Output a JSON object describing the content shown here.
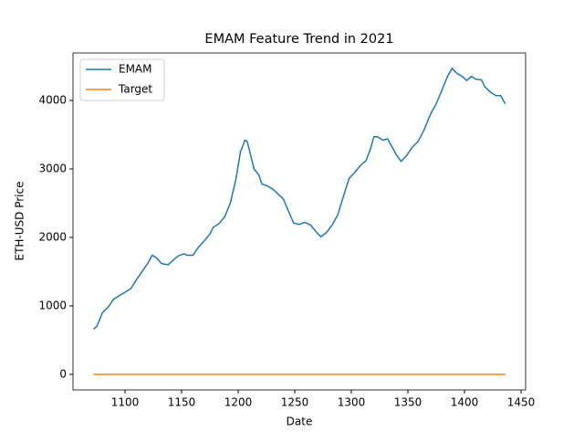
{
  "chart_data": {
    "type": "line",
    "title": "EMAM Feature Trend in 2021",
    "xlabel": "Date",
    "ylabel": "ETH-USD Price",
    "xlim": [
      1054,
      1454
    ],
    "ylim": [
      -227,
      4693
    ],
    "xticks": [
      1100,
      1150,
      1200,
      1250,
      1300,
      1350,
      1400,
      1450
    ],
    "yticks": [
      0,
      1000,
      2000,
      3000,
      4000
    ],
    "legend": "upper-left",
    "series": [
      {
        "name": "EMAM",
        "color": "#1f77b4",
        "x": [
          1072,
          1075,
          1080,
          1085,
          1090,
          1095,
          1100,
          1105,
          1110,
          1115,
          1120,
          1124,
          1128,
          1132,
          1138,
          1142,
          1147,
          1152,
          1155,
          1160,
          1165,
          1170,
          1175,
          1178,
          1183,
          1188,
          1193,
          1198,
          1202,
          1206,
          1208,
          1211,
          1214,
          1218,
          1221,
          1226,
          1231,
          1236,
          1240,
          1244,
          1249,
          1254,
          1259,
          1264,
          1269,
          1273,
          1278,
          1283,
          1288,
          1293,
          1298,
          1303,
          1308,
          1313,
          1317,
          1320,
          1323,
          1328,
          1332,
          1336,
          1340,
          1344,
          1349,
          1354,
          1359,
          1364,
          1370,
          1375,
          1380,
          1385,
          1389,
          1393,
          1398,
          1402,
          1406,
          1410,
          1415,
          1418,
          1423,
          1428,
          1432,
          1436
        ],
        "values": [
          660,
          700,
          900,
          980,
          1100,
          1150,
          1200,
          1250,
          1380,
          1500,
          1620,
          1740,
          1700,
          1620,
          1600,
          1660,
          1730,
          1760,
          1740,
          1740,
          1860,
          1950,
          2050,
          2150,
          2200,
          2300,
          2500,
          2850,
          3250,
          3420,
          3400,
          3200,
          3000,
          2920,
          2780,
          2750,
          2700,
          2620,
          2560,
          2400,
          2210,
          2190,
          2220,
          2180,
          2080,
          2010,
          2070,
          2180,
          2330,
          2600,
          2860,
          2950,
          3050,
          3120,
          3300,
          3470,
          3470,
          3420,
          3440,
          3320,
          3200,
          3110,
          3200,
          3320,
          3400,
          3560,
          3800,
          3950,
          4150,
          4350,
          4470,
          4400,
          4350,
          4290,
          4350,
          4310,
          4300,
          4200,
          4120,
          4070,
          4070,
          3950
        ]
      },
      {
        "name": "Target",
        "color": "#ff7f0e",
        "x": [
          1072,
          1436
        ],
        "values": [
          0,
          0
        ]
      }
    ]
  }
}
